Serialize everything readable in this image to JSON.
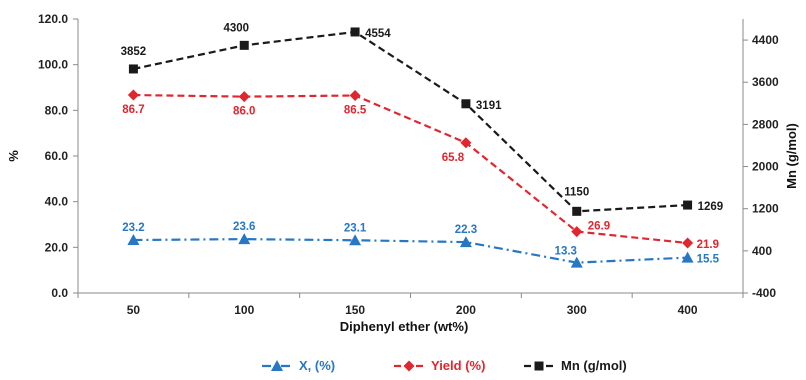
{
  "chart_data": {
    "type": "line",
    "categories": [
      "50",
      "100",
      "150",
      "200",
      "300",
      "400"
    ],
    "xlabel": "Diphenyl ether (wt%)",
    "ylabel": "%",
    "y2label": "Mn (g/mol)",
    "ylim": [
      0,
      120
    ],
    "y_ticks": [
      "0.0",
      "20.0",
      "40.0",
      "60.0",
      "80.0",
      "100.0",
      "120.0"
    ],
    "y_tick_values": [
      0,
      20,
      40,
      60,
      80,
      100,
      120
    ],
    "y2lim": [
      -400,
      4800
    ],
    "y2_ticks": [
      "-400",
      "400",
      "1200",
      "2000",
      "2800",
      "3600",
      "4400"
    ],
    "y2_tick_values": [
      -400,
      400,
      1200,
      2000,
      2800,
      3600,
      4400
    ],
    "grid": false,
    "legend_position": "bottom",
    "series": [
      {
        "name": "X, (%)",
        "axis": "left",
        "color": "#2777c4",
        "marker": "triangle",
        "line_style": "dash-dot",
        "values": [
          23.2,
          23.6,
          23.1,
          22.3,
          13.3,
          15.5
        ],
        "labels": [
          "23.2",
          "23.6",
          "23.1",
          "22.3",
          "13.3",
          "15.5"
        ]
      },
      {
        "name": "Yield (%)",
        "axis": "left",
        "color": "#e0262e",
        "marker": "diamond",
        "line_style": "dash",
        "values": [
          86.7,
          86.0,
          86.5,
          65.8,
          26.9,
          21.9
        ],
        "labels": [
          "86.7",
          "86.0",
          "86.5",
          "65.8",
          "26.9",
          "21.9"
        ]
      },
      {
        "name": "Mn (g/mol)",
        "axis": "right",
        "color": "#1a1a1a",
        "marker": "square",
        "line_style": "dash",
        "values": [
          3852,
          4300,
          4554,
          3191,
          1150,
          1269
        ],
        "labels": [
          "3852",
          "4300",
          "4554",
          "3191",
          "1150",
          "1269"
        ]
      }
    ]
  }
}
